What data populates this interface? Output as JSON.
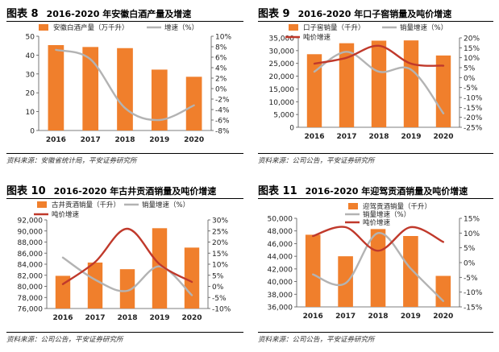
{
  "colors": {
    "bar": "#F07F2C",
    "line_gray": "#B3B3B3",
    "line_red": "#C0392B"
  },
  "charts": [
    {
      "label": "图表 8",
      "title": "2016-2020 年安徽白酒产量及增速",
      "source": "资料来源：安徽省统计局，平安证券研究所",
      "chart_data": {
        "type": "bar+line",
        "categories": [
          "2016",
          "2017",
          "2018",
          "2019",
          "2020"
        ],
        "series": [
          {
            "name": "安徽白酒产量（万千升）",
            "type": "bar",
            "axis": "left",
            "values": [
              45.3,
              44.3,
              43.7,
              32.3,
              28.5
            ]
          },
          {
            "name": "增速（%）",
            "type": "line",
            "axis": "right",
            "values": [
              7.4,
              5.6,
              -3.7,
              -6.0,
              -3.2
            ]
          }
        ],
        "left_axis": {
          "min": 0,
          "max": 50,
          "step": 10,
          "ticks": [
            "0",
            "10",
            "20",
            "30",
            "40",
            "50"
          ]
        },
        "right_axis": {
          "min": -8,
          "max": 10,
          "step": 2,
          "ticks": [
            "-8%",
            "-6%",
            "-4%",
            "-2%",
            "0%",
            "2%",
            "4%",
            "6%",
            "8%",
            "10%"
          ]
        }
      }
    },
    {
      "label": "图表 9",
      "title": "2016-2020 年口子窖销量及吨价增速",
      "source": "资料来源：公司公告，平安证券研究所",
      "chart_data": {
        "type": "bar+line",
        "categories": [
          "2016",
          "2017",
          "2018",
          "2019",
          "2020"
        ],
        "series": [
          {
            "name": "口子窖销量（千升）",
            "type": "bar",
            "axis": "left",
            "values": [
              28600,
              32900,
              33900,
              34000,
              28100
            ]
          },
          {
            "name": "销量增速（%）",
            "type": "line",
            "axis": "right",
            "values": [
              3.0,
              13.0,
              3.0,
              4.0,
              -18.0
            ]
          },
          {
            "name": "吨价增速",
            "type": "line",
            "axis": "right",
            "values": [
              7.0,
              10.0,
              16.0,
              7.0,
              6.0
            ]
          }
        ],
        "left_axis": {
          "min": 0,
          "max": 35000,
          "step": 5000,
          "ticks": [
            "0",
            "5,000",
            "10,000",
            "15,000",
            "20,000",
            "25,000",
            "30,000",
            "35,000"
          ]
        },
        "right_axis": {
          "min": -25,
          "max": 20,
          "step": 5,
          "ticks": [
            "-25%",
            "-20%",
            "-15%",
            "-10%",
            "-5%",
            "0%",
            "5%",
            "10%",
            "15%",
            "20%"
          ]
        }
      }
    },
    {
      "label": "图表 10",
      "title": "2016-2020 年古井贡酒销量及吨价增速",
      "source": "资料来源：公司公告，平安证券研究所",
      "chart_data": {
        "type": "bar+line",
        "categories": [
          "2016",
          "2017",
          "2018",
          "2019",
          "2020"
        ],
        "series": [
          {
            "name": "古井贡酒销量（千升）",
            "type": "bar",
            "axis": "left",
            "values": [
              81900,
              84300,
              83100,
              90500,
              87000
            ]
          },
          {
            "name": "销量增速（%）",
            "type": "line",
            "axis": "right",
            "values": [
              13.0,
              3.0,
              -2.0,
              9.0,
              -4.0
            ]
          },
          {
            "name": "吨价增速",
            "type": "line",
            "axis": "right",
            "values": [
              1.0,
              11.0,
              26.0,
              10.0,
              2.0
            ]
          }
        ],
        "left_axis": {
          "min": 76000,
          "max": 92000,
          "step": 2000,
          "ticks": [
            "76,000",
            "78,000",
            "80,000",
            "82,000",
            "84,000",
            "86,000",
            "88,000",
            "90,000",
            "92,000"
          ]
        },
        "right_axis": {
          "min": -10,
          "max": 30,
          "step": 5,
          "ticks": [
            "-10%",
            "-5%",
            "0%",
            "5%",
            "10%",
            "15%",
            "20%",
            "25%",
            "30%"
          ]
        }
      }
    },
    {
      "label": "图表 11",
      "title": "2016-2020 年迎驾贡酒销量及吨价增速",
      "source": "资料来源：公司公告，平安证券研究所",
      "chart_data": {
        "type": "bar+line",
        "categories": [
          "2016",
          "2017",
          "2018",
          "2019",
          "2020"
        ],
        "series": [
          {
            "name": "迎驾贡酒销量（千升）",
            "type": "bar",
            "axis": "left",
            "values": [
              47400,
              44000,
              48300,
              47200,
              40900
            ]
          },
          {
            "name": "销量增速（%）",
            "type": "line",
            "axis": "right",
            "values": [
              -4.0,
              -7.0,
              10.0,
              -2.0,
              -13.0
            ]
          },
          {
            "name": "吨价增速",
            "type": "line",
            "axis": "right",
            "values": [
              9.0,
              12.0,
              4.0,
              12.0,
              7.0
            ]
          }
        ],
        "left_axis": {
          "min": 36000,
          "max": 50000,
          "step": 2000,
          "ticks": [
            "36,000",
            "38,000",
            "40,000",
            "42,000",
            "44,000",
            "46,000",
            "48,000",
            "50,000"
          ]
        },
        "right_axis": {
          "min": -15,
          "max": 15,
          "step": 5,
          "ticks": [
            "-15%",
            "-10%",
            "-5%",
            "0%",
            "5%",
            "10%",
            "15%"
          ]
        }
      }
    }
  ]
}
